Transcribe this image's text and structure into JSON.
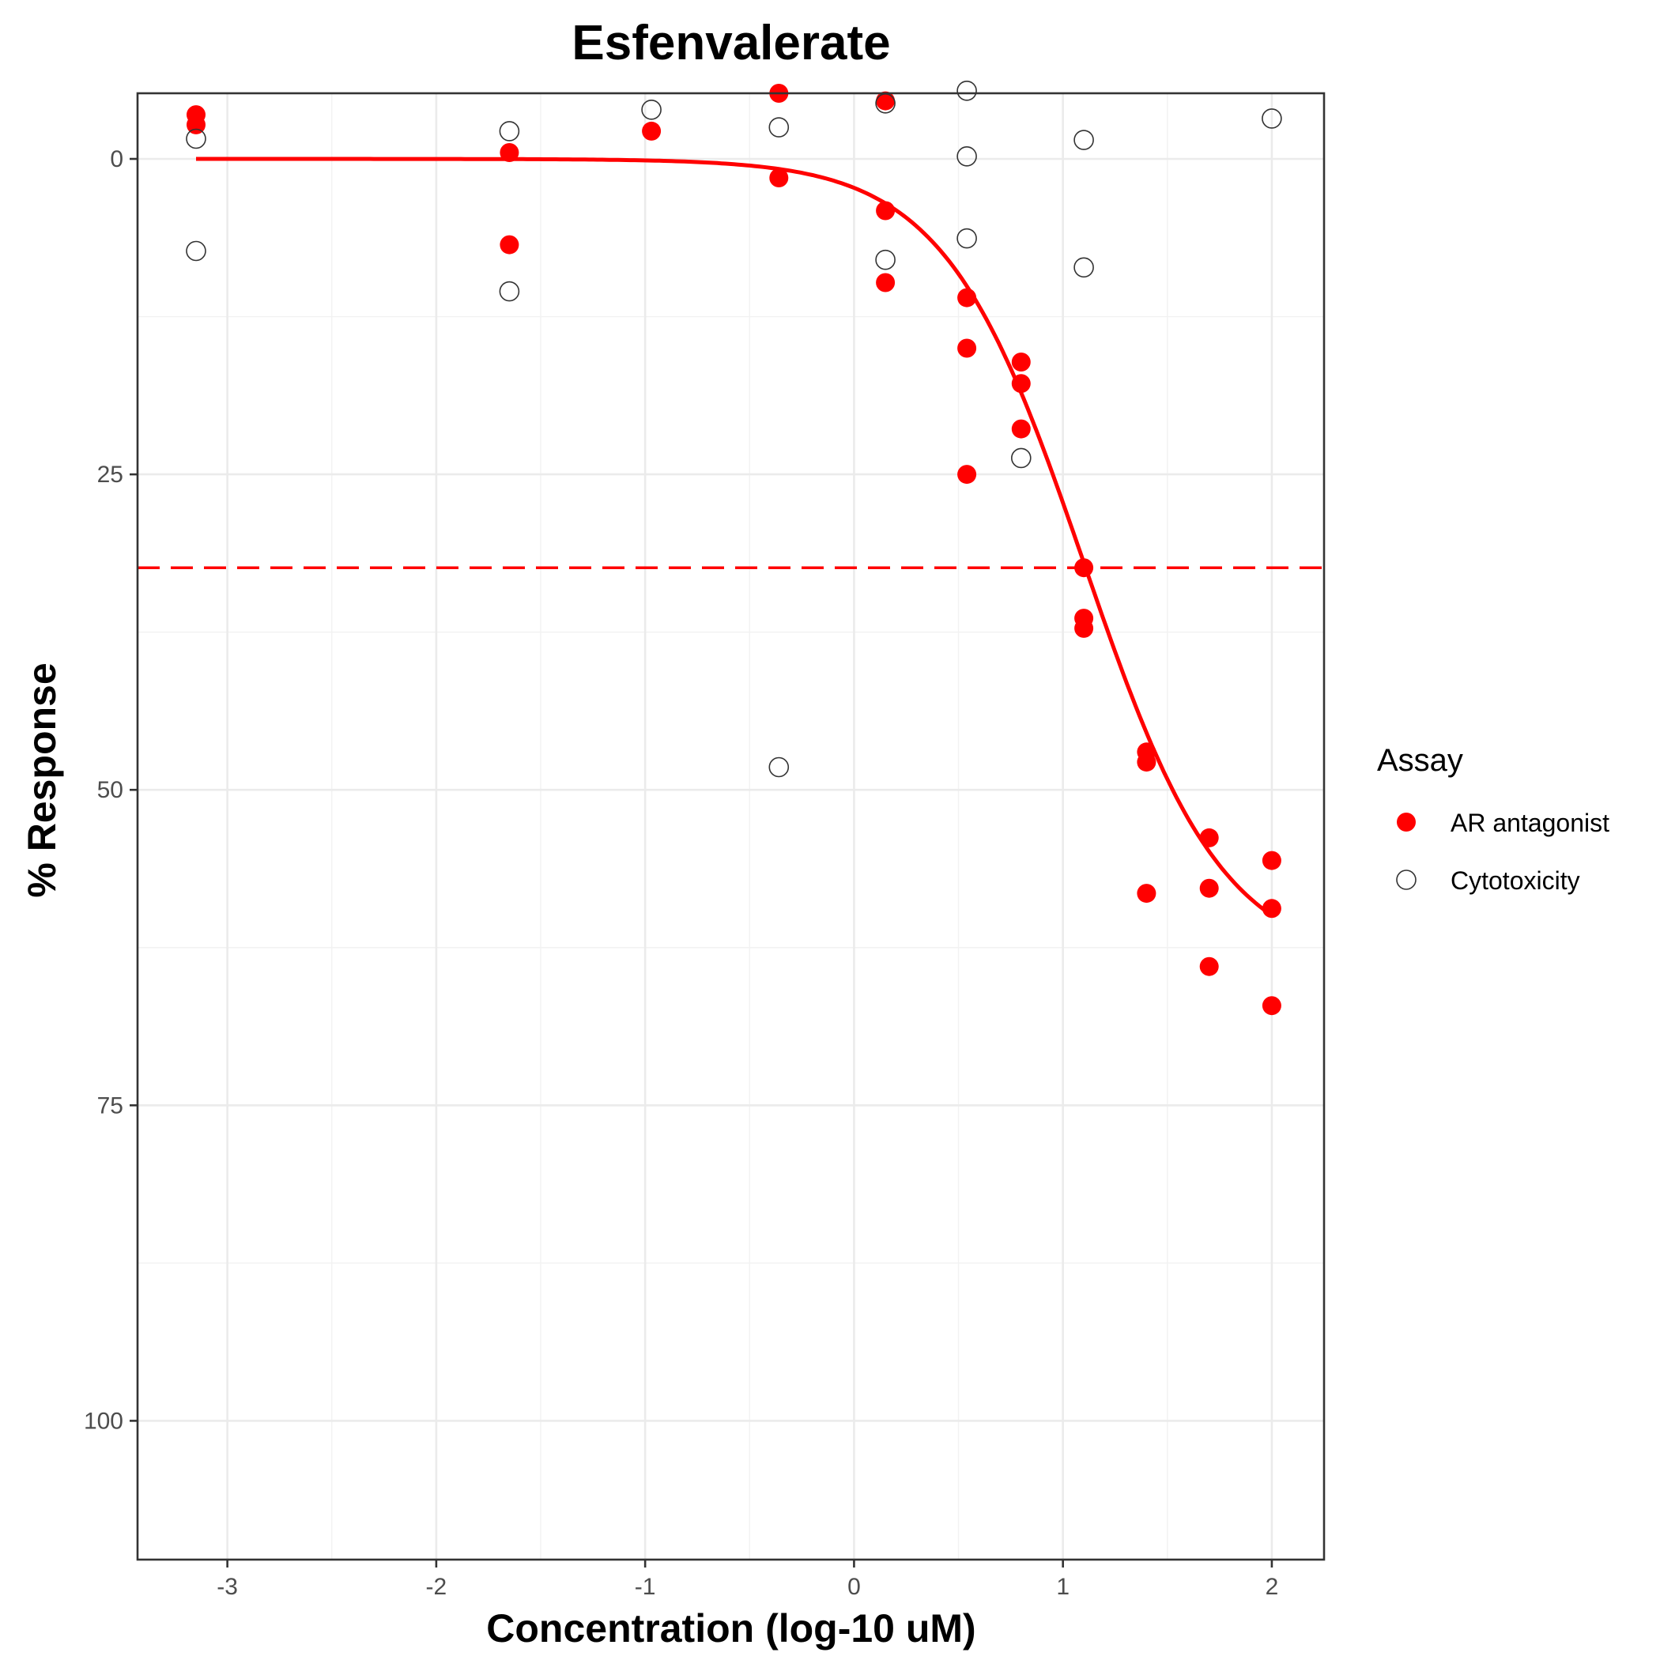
{
  "chart_data": {
    "type": "scatter",
    "title": "Esfenvalerate",
    "xlabel": "Concentration (log-10 uM)",
    "ylabel": "% Response",
    "xlim": [
      -3.43,
      2.25
    ],
    "ylim": [
      -5.2,
      111
    ],
    "y_reversed": true,
    "x_ticks": [
      -3,
      -2,
      -1,
      0,
      1,
      2
    ],
    "x_tick_labels": [
      "-3",
      "-2",
      "-1",
      "0",
      "1",
      "2"
    ],
    "y_ticks": [
      0,
      25,
      50,
      75,
      100
    ],
    "y_tick_labels": [
      "0",
      "25",
      "50",
      "75",
      "100"
    ],
    "grid": true,
    "legend": {
      "title": "Assay",
      "position": "right",
      "entries": [
        {
          "label": "AR antagonist",
          "marker": "filled-circle",
          "color": "#ff0000"
        },
        {
          "label": "Cytotoxicity",
          "marker": "open-circle",
          "color": "#000000"
        }
      ]
    },
    "series": [
      {
        "name": "AR antagonist",
        "marker": "filled-circle",
        "color": "#ff0000",
        "points": [
          [
            -3.15,
            -3.5
          ],
          [
            -3.15,
            -2.7
          ],
          [
            -1.65,
            -0.5
          ],
          [
            -1.65,
            6.8
          ],
          [
            -0.97,
            -2.2
          ],
          [
            -0.36,
            -5.2
          ],
          [
            -0.36,
            1.5
          ],
          [
            0.15,
            -4.6
          ],
          [
            0.15,
            4.1
          ],
          [
            0.15,
            9.8
          ],
          [
            0.54,
            11.0
          ],
          [
            0.54,
            15.0
          ],
          [
            0.54,
            25.0
          ],
          [
            0.8,
            16.1
          ],
          [
            0.8,
            17.8
          ],
          [
            0.8,
            21.4
          ],
          [
            1.1,
            32.4
          ],
          [
            1.1,
            36.4
          ],
          [
            1.1,
            37.2
          ],
          [
            1.4,
            47.0
          ],
          [
            1.4,
            47.8
          ],
          [
            1.4,
            58.2
          ],
          [
            1.7,
            53.8
          ],
          [
            1.7,
            57.8
          ],
          [
            1.7,
            64.0
          ],
          [
            2.0,
            55.6
          ],
          [
            2.0,
            59.4
          ],
          [
            2.0,
            67.1
          ]
        ]
      },
      {
        "name": "Cytotoxicity",
        "marker": "open-circle",
        "color": "#000000",
        "points": [
          [
            -3.15,
            -1.6
          ],
          [
            -3.15,
            7.3
          ],
          [
            -1.65,
            -2.2
          ],
          [
            -1.65,
            10.5
          ],
          [
            -0.97,
            -3.9
          ],
          [
            -0.36,
            -2.5
          ],
          [
            -0.36,
            48.2
          ],
          [
            0.15,
            -4.4
          ],
          [
            0.15,
            8.0
          ],
          [
            0.54,
            -5.4
          ],
          [
            0.54,
            -0.2
          ],
          [
            0.54,
            6.3
          ],
          [
            0.8,
            23.7
          ],
          [
            1.1,
            -1.5
          ],
          [
            1.1,
            8.6
          ],
          [
            2.0,
            -3.2
          ]
        ]
      }
    ],
    "reference_line": {
      "type": "horizontal",
      "y": 32.4,
      "style": "dashed",
      "color": "#ff0000"
    },
    "fit_curve": {
      "series": "AR antagonist",
      "model": "hill",
      "top": 64,
      "ac50_log10": 1.1,
      "hill_slope": 1.3,
      "x_range": [
        -3.15,
        2.0
      ],
      "color": "#ff0000"
    }
  }
}
